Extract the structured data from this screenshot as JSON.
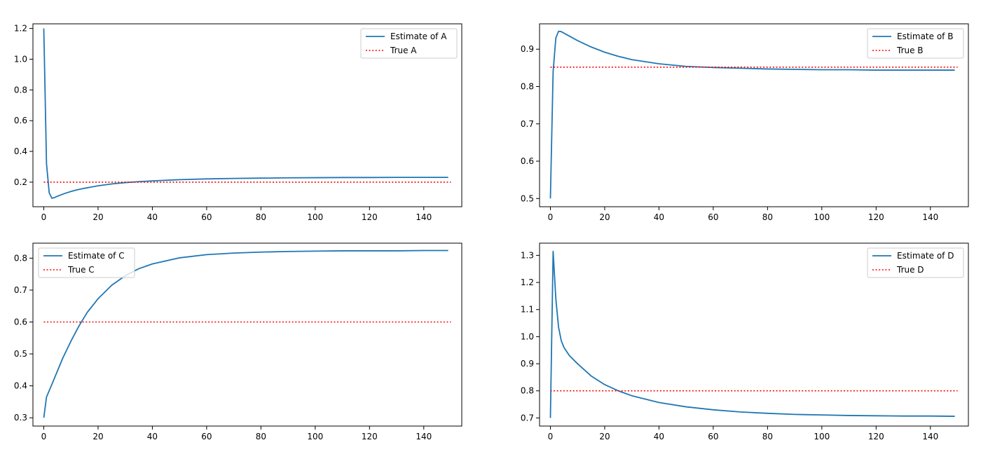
{
  "chart_data": [
    {
      "type": "line",
      "id": "A",
      "xlim": [
        -4,
        154
      ],
      "ylim": [
        0.04,
        1.23
      ],
      "xticks": [
        0,
        20,
        40,
        60,
        80,
        100,
        120,
        140
      ],
      "xtick_labels": [
        "0",
        "20",
        "40",
        "60",
        "80",
        "100",
        "120",
        "140"
      ],
      "yticks": [
        0.2,
        0.4,
        0.6,
        0.8,
        1.0,
        1.2
      ],
      "ytick_labels": [
        "0.2",
        "0.4",
        "0.6",
        "0.8",
        "1.0",
        "1.2"
      ],
      "legend_position": "top-right",
      "series": [
        {
          "name": "Estimate of A",
          "style": "solid",
          "color": "#1f77b4",
          "x": [
            0,
            1,
            2,
            3,
            4,
            5,
            6,
            8,
            10,
            12,
            15,
            20,
            25,
            30,
            35,
            40,
            50,
            60,
            70,
            80,
            90,
            100,
            110,
            120,
            130,
            140,
            149
          ],
          "y": [
            1.2,
            0.32,
            0.13,
            0.095,
            0.1,
            0.108,
            0.115,
            0.128,
            0.139,
            0.149,
            0.16,
            0.176,
            0.188,
            0.197,
            0.203,
            0.208,
            0.216,
            0.221,
            0.224,
            0.226,
            0.228,
            0.229,
            0.23,
            0.23,
            0.231,
            0.231,
            0.231
          ]
        },
        {
          "name": "True A",
          "style": "dotted",
          "color": "#ff0000",
          "x": [
            0,
            150
          ],
          "y": [
            0.2,
            0.2
          ]
        }
      ]
    },
    {
      "type": "line",
      "id": "B",
      "xlim": [
        -4,
        154
      ],
      "ylim": [
        0.478,
        0.968
      ],
      "xticks": [
        0,
        20,
        40,
        60,
        80,
        100,
        120,
        140
      ],
      "xtick_labels": [
        "0",
        "20",
        "40",
        "60",
        "80",
        "100",
        "120",
        "140"
      ],
      "yticks": [
        0.5,
        0.6,
        0.7,
        0.8,
        0.9
      ],
      "ytick_labels": [
        "0.5",
        "0.6",
        "0.7",
        "0.8",
        "0.9"
      ],
      "legend_position": "top-right",
      "series": [
        {
          "name": "Estimate of B",
          "style": "solid",
          "color": "#1f77b4",
          "x": [
            0,
            1,
            2,
            3,
            4,
            5,
            7,
            10,
            15,
            20,
            25,
            30,
            40,
            50,
            60,
            70,
            80,
            90,
            100,
            110,
            120,
            130,
            140,
            149
          ],
          "y": [
            0.5,
            0.84,
            0.93,
            0.948,
            0.947,
            0.943,
            0.935,
            0.923,
            0.906,
            0.892,
            0.881,
            0.872,
            0.861,
            0.854,
            0.851,
            0.849,
            0.847,
            0.846,
            0.845,
            0.845,
            0.844,
            0.844,
            0.844,
            0.844
          ]
        },
        {
          "name": "True B",
          "style": "dotted",
          "color": "#ff0000",
          "x": [
            0,
            150
          ],
          "y": [
            0.852,
            0.852
          ]
        }
      ]
    },
    {
      "type": "line",
      "id": "C",
      "xlim": [
        -4,
        154
      ],
      "ylim": [
        0.274,
        0.847
      ],
      "xticks": [
        0,
        20,
        40,
        60,
        80,
        100,
        120,
        140
      ],
      "xtick_labels": [
        "0",
        "20",
        "40",
        "60",
        "80",
        "100",
        "120",
        "140"
      ],
      "yticks": [
        0.3,
        0.4,
        0.5,
        0.6,
        0.7,
        0.8
      ],
      "ytick_labels": [
        "0.3",
        "0.4",
        "0.5",
        "0.6",
        "0.7",
        "0.8"
      ],
      "legend_position": "top-left",
      "series": [
        {
          "name": "Estimate of C",
          "style": "solid",
          "color": "#1f77b4",
          "x": [
            0,
            1,
            3,
            5,
            7,
            10,
            13,
            16,
            20,
            25,
            30,
            35,
            40,
            50,
            60,
            70,
            80,
            90,
            100,
            110,
            120,
            130,
            140,
            149
          ],
          "y": [
            0.3,
            0.365,
            0.405,
            0.446,
            0.487,
            0.54,
            0.588,
            0.63,
            0.673,
            0.715,
            0.745,
            0.767,
            0.782,
            0.801,
            0.811,
            0.816,
            0.819,
            0.821,
            0.822,
            0.823,
            0.823,
            0.823,
            0.824,
            0.824
          ]
        },
        {
          "name": "True C",
          "style": "dotted",
          "color": "#ff0000",
          "x": [
            0,
            150
          ],
          "y": [
            0.6,
            0.6
          ]
        }
      ]
    },
    {
      "type": "line",
      "id": "D",
      "xlim": [
        -4,
        154
      ],
      "ylim": [
        0.67,
        1.345
      ],
      "xticks": [
        0,
        20,
        40,
        60,
        80,
        100,
        120,
        140
      ],
      "xtick_labels": [
        "0",
        "20",
        "40",
        "60",
        "80",
        "100",
        "120",
        "140"
      ],
      "yticks": [
        0.7,
        0.8,
        0.9,
        1.0,
        1.1,
        1.2,
        1.3
      ],
      "ytick_labels": [
        "0.7",
        "0.8",
        "0.9",
        "1.0",
        "1.1",
        "1.2",
        "1.3"
      ],
      "legend_position": "top-right",
      "series": [
        {
          "name": "Estimate of D",
          "style": "solid",
          "color": "#1f77b4",
          "x": [
            0,
            1,
            2,
            3,
            4,
            5,
            7,
            10,
            15,
            20,
            25,
            30,
            40,
            50,
            60,
            70,
            80,
            90,
            100,
            110,
            120,
            130,
            140,
            149
          ],
          "y": [
            0.7,
            1.315,
            1.14,
            1.035,
            0.985,
            0.96,
            0.93,
            0.9,
            0.855,
            0.823,
            0.8,
            0.782,
            0.757,
            0.741,
            0.73,
            0.722,
            0.717,
            0.713,
            0.711,
            0.709,
            0.708,
            0.707,
            0.707,
            0.706
          ]
        },
        {
          "name": "True D",
          "style": "dotted",
          "color": "#ff0000",
          "x": [
            0,
            150
          ],
          "y": [
            0.8,
            0.8
          ]
        }
      ]
    }
  ]
}
